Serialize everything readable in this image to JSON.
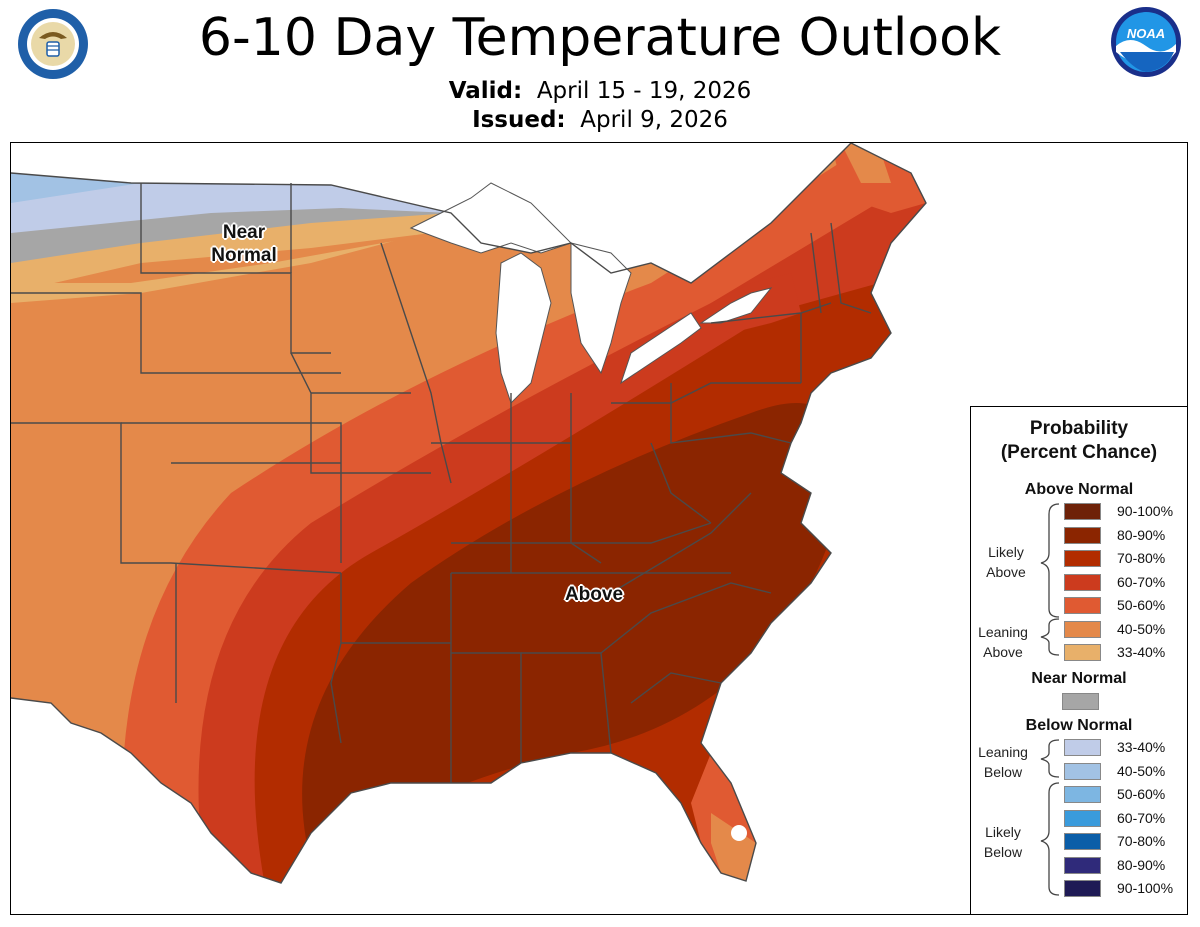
{
  "header": {
    "title": "6-10 Day Temperature Outlook",
    "valid_label": "Valid:",
    "valid_value": "April 15 - 19, 2026",
    "issued_label": "Issued:",
    "issued_value": "April 9, 2026"
  },
  "logos": {
    "left": "Department of Commerce seal",
    "right": "NOAA logo"
  },
  "map": {
    "labels": {
      "near_normal": "Near Normal",
      "near_line1": "Near",
      "near_line2": "Normal",
      "above": "Above"
    }
  },
  "legend": {
    "title_line1": "Probability",
    "title_line2": "(Percent Chance)",
    "above_normal": {
      "heading": "Above Normal",
      "likely": "Likely Above",
      "likely_line1": "Likely",
      "likely_line2": "Above",
      "leaning": "Leaning Above",
      "leaning_line1": "Leaning",
      "leaning_line2": "Above",
      "items": [
        {
          "label": "90-100%",
          "color": "#6e2208"
        },
        {
          "label": "80-90%",
          "color": "#8b2500"
        },
        {
          "label": "70-80%",
          "color": "#b22c00"
        },
        {
          "label": "60-70%",
          "color": "#cc3b1e"
        },
        {
          "label": "50-60%",
          "color": "#e05a32"
        },
        {
          "label": "40-50%",
          "color": "#e4894a"
        },
        {
          "label": "33-40%",
          "color": "#e8b06a"
        }
      ]
    },
    "near_normal": {
      "heading": "Near Normal",
      "color": "#a6a6a6"
    },
    "below_normal": {
      "heading": "Below Normal",
      "leaning": "Leaning Below",
      "leaning_line1": "Leaning",
      "leaning_line2": "Below",
      "likely": "Likely Below",
      "likely_line1": "Likely",
      "likely_line2": "Below",
      "items": [
        {
          "label": "33-40%",
          "color": "#c0cce8"
        },
        {
          "label": "40-50%",
          "color": "#a2c2e4"
        },
        {
          "label": "50-60%",
          "color": "#7db6e2"
        },
        {
          "label": "60-70%",
          "color": "#3a9bdc"
        },
        {
          "label": "70-80%",
          "color": "#0b5ea8"
        },
        {
          "label": "80-90%",
          "color": "#2f2a7a"
        },
        {
          "label": "90-100%",
          "color": "#1f1a55"
        }
      ]
    }
  }
}
